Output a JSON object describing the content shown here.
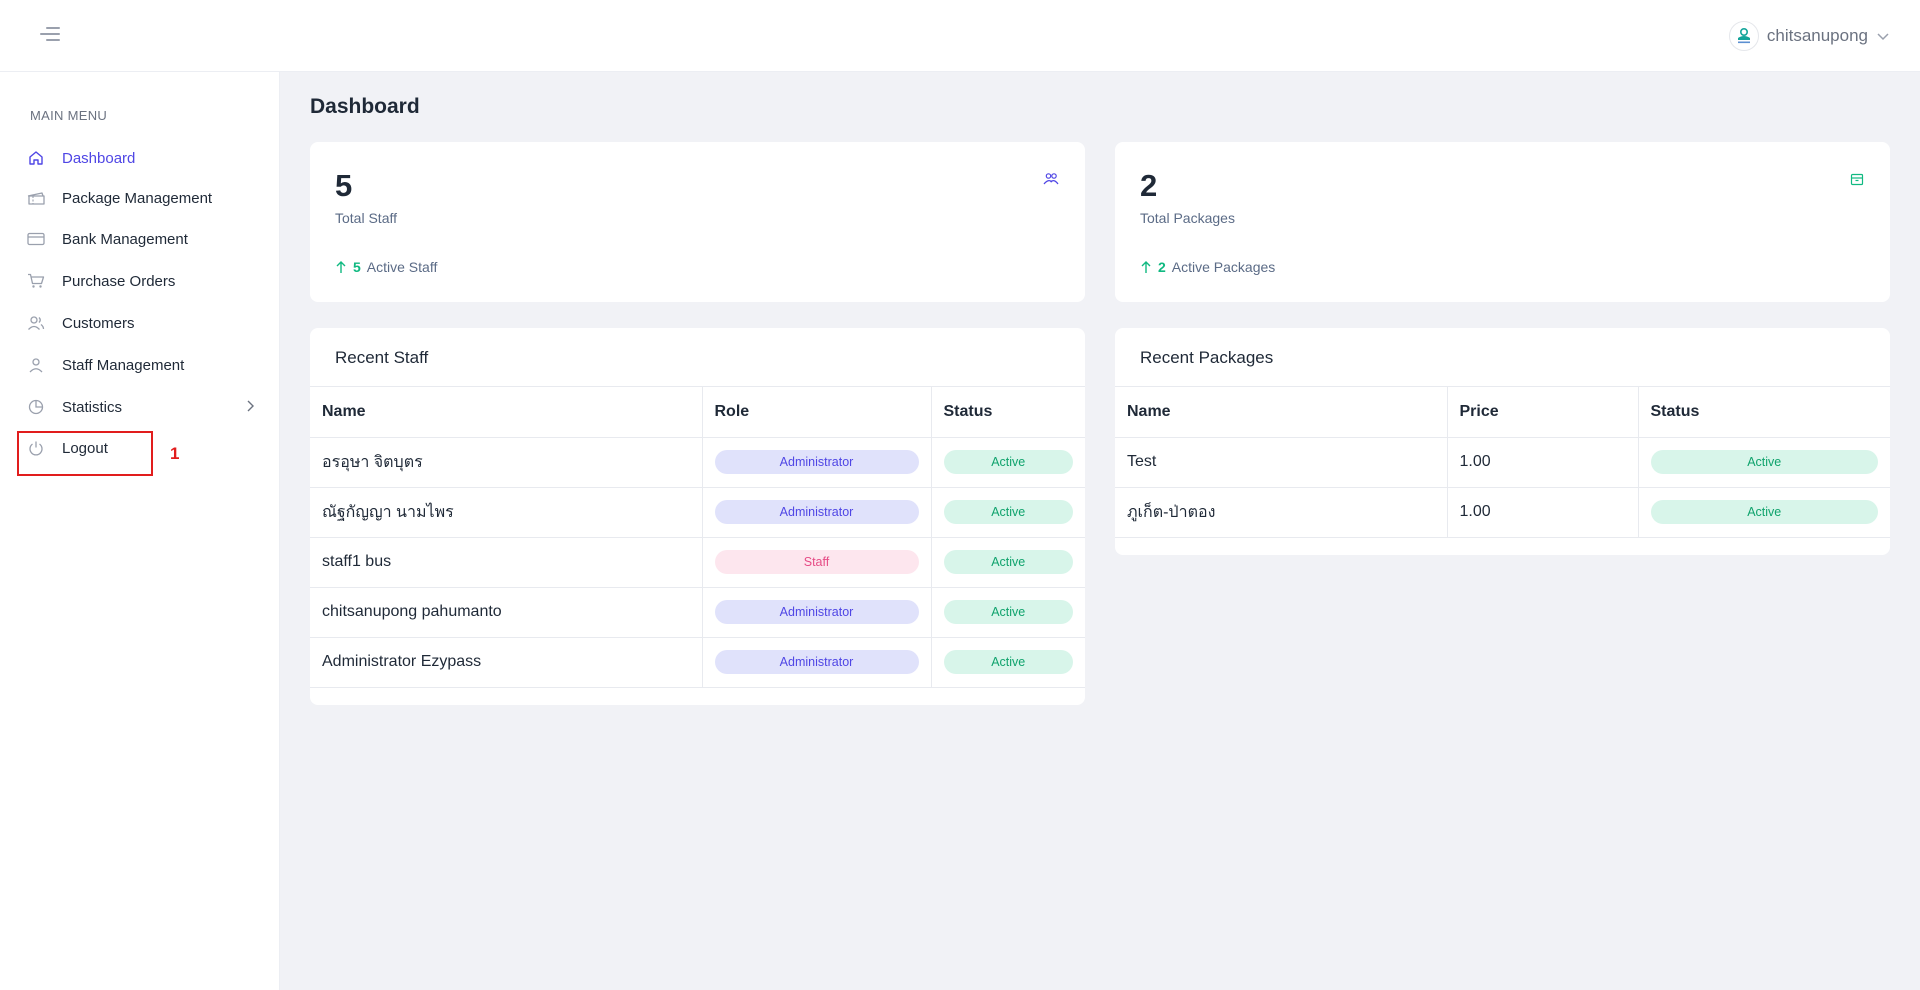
{
  "header": {
    "username": "chitsanupong"
  },
  "sidebar": {
    "heading": "MAIN MENU",
    "items": [
      {
        "label": "Dashboard"
      },
      {
        "label": "Package Management"
      },
      {
        "label": "Bank Management"
      },
      {
        "label": "Purchase Orders"
      },
      {
        "label": "Customers"
      },
      {
        "label": "Staff Management"
      },
      {
        "label": "Statistics"
      },
      {
        "label": "Logout"
      }
    ],
    "marker": "1"
  },
  "main": {
    "title": "Dashboard",
    "staff_card": {
      "value": "5",
      "label": "Total Staff",
      "sub_value": "5",
      "sub_label": "Active Staff"
    },
    "packages_card": {
      "value": "2",
      "label": "Total Packages",
      "sub_value": "2",
      "sub_label": "Active Packages"
    },
    "recent_staff": {
      "title": "Recent Staff",
      "columns": [
        "Name",
        "Role",
        "Status"
      ],
      "rows": [
        {
          "name": "อรอุษา จิตบุตร",
          "role": "Administrator",
          "status": "Active"
        },
        {
          "name": "ณัฐกัญญา นามไพร",
          "role": "Administrator",
          "status": "Active"
        },
        {
          "name": "staff1 bus",
          "role": "Staff",
          "status": "Active"
        },
        {
          "name": "chitsanupong pahumanto",
          "role": "Administrator",
          "status": "Active"
        },
        {
          "name": "Administrator Ezypass",
          "role": "Administrator",
          "status": "Active"
        }
      ]
    },
    "recent_packages": {
      "title": "Recent Packages",
      "columns": [
        "Name",
        "Price",
        "Status"
      ],
      "rows": [
        {
          "name": "Test",
          "price": "1.00",
          "status": "Active"
        },
        {
          "name": "ภูเก็ต-ป่าตอง",
          "price": "1.00",
          "status": "Active"
        }
      ]
    }
  },
  "colors": {
    "accent": "#4f46e5",
    "success": "#10b981",
    "staff_badge": "#e64c86",
    "highlight": "#e11d1d"
  },
  "icons": {
    "menu": "hamburger-icon",
    "staff": "users-icon",
    "packages": "package-icon",
    "trend": "arrow-up-icon"
  }
}
